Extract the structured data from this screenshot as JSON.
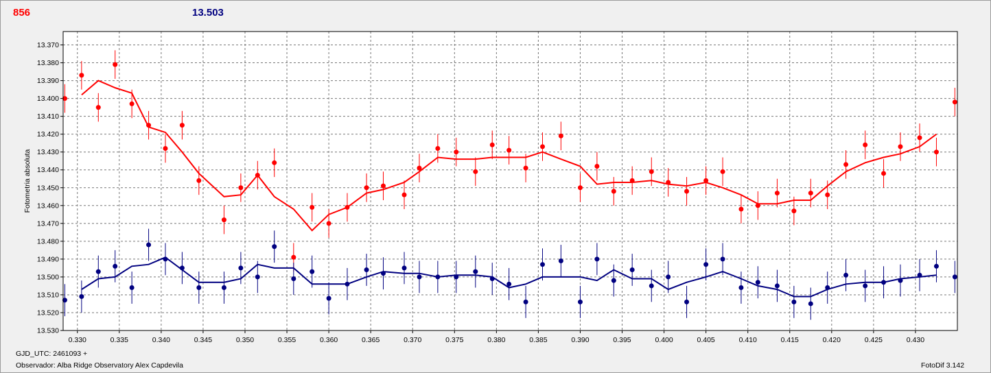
{
  "header": {
    "left_value": "856",
    "right_value": "13.503"
  },
  "footer": {
    "gjd": "GJD_UTC: 2461093 +",
    "observer": "Observador: Alba Ridge Observatory Alex Capdevila",
    "software": "FotoDif 3.142"
  },
  "colors": {
    "series_red": "#ff0000",
    "series_blue": "#000080",
    "grid": "#777777",
    "plot_bg": "#ffffff"
  },
  "chart_data": {
    "type": "scatter",
    "ylabel": "Fotometria absoluta",
    "xlabel": "",
    "xlim": [
      0.3283,
      0.435
    ],
    "ylim": [
      13.53,
      13.3625
    ],
    "y_inverted": true,
    "grid": true,
    "x_ticks": [
      0.33,
      0.335,
      0.34,
      0.345,
      0.35,
      0.355,
      0.36,
      0.365,
      0.37,
      0.375,
      0.38,
      0.385,
      0.39,
      0.395,
      0.4,
      0.405,
      0.41,
      0.415,
      0.42,
      0.425,
      0.43
    ],
    "x_tick_labels": [
      "0.330",
      "0.335",
      "0.340",
      "0.345",
      "0.350",
      "0.355",
      "0.360",
      "0.365",
      "0.370",
      "0.375",
      "0.380",
      "0.385",
      "0.390",
      "0.395",
      "0.400",
      "0.405",
      "0.410",
      "0.415",
      "0.420",
      "0.425",
      "0.430"
    ],
    "y_ticks": [
      13.37,
      13.38,
      13.39,
      13.4,
      13.41,
      13.42,
      13.43,
      13.44,
      13.45,
      13.46,
      13.47,
      13.48,
      13.49,
      13.5,
      13.51,
      13.52,
      13.53
    ],
    "y_tick_labels": [
      "13.370",
      "13.380",
      "13.390",
      "13.400",
      "13.410",
      "13.420",
      "13.430",
      "13.440",
      "13.450",
      "13.460",
      "13.470",
      "13.480",
      "13.490",
      "13.500",
      "13.510",
      "13.520",
      "13.530"
    ],
    "series": [
      {
        "color": "#ff0000",
        "error": 0.008,
        "points": [
          [
            0.3285,
            13.4
          ],
          [
            0.3305,
            13.387
          ],
          [
            0.3325,
            13.405
          ],
          [
            0.3345,
            13.381
          ],
          [
            0.3365,
            13.403
          ],
          [
            0.3385,
            13.415
          ],
          [
            0.3405,
            13.428
          ],
          [
            0.3425,
            13.415
          ],
          [
            0.3445,
            13.446
          ],
          [
            0.3475,
            13.468
          ],
          [
            0.3495,
            13.45
          ],
          [
            0.3515,
            13.443
          ],
          [
            0.3535,
            13.436
          ],
          [
            0.3558,
            13.489
          ],
          [
            0.358,
            13.461
          ],
          [
            0.36,
            13.47
          ],
          [
            0.3622,
            13.461
          ],
          [
            0.3645,
            13.45
          ],
          [
            0.3665,
            13.449
          ],
          [
            0.369,
            13.454
          ],
          [
            0.3708,
            13.439
          ],
          [
            0.373,
            13.428
          ],
          [
            0.3752,
            13.43
          ],
          [
            0.3775,
            13.441
          ],
          [
            0.3795,
            13.426
          ],
          [
            0.3815,
            13.429
          ],
          [
            0.3835,
            13.439
          ],
          [
            0.3855,
            13.427
          ],
          [
            0.3877,
            13.421
          ],
          [
            0.39,
            13.45
          ],
          [
            0.392,
            13.438
          ],
          [
            0.394,
            13.452
          ],
          [
            0.3962,
            13.446
          ],
          [
            0.3985,
            13.441
          ],
          [
            0.4005,
            13.447
          ],
          [
            0.4027,
            13.452
          ],
          [
            0.405,
            13.446
          ],
          [
            0.407,
            13.441
          ],
          [
            0.4092,
            13.462
          ],
          [
            0.4112,
            13.46
          ],
          [
            0.4135,
            13.453
          ],
          [
            0.4155,
            13.463
          ],
          [
            0.4175,
            13.453
          ],
          [
            0.4195,
            13.454
          ],
          [
            0.4217,
            13.437
          ],
          [
            0.424,
            13.426
          ],
          [
            0.4262,
            13.442
          ],
          [
            0.4282,
            13.427
          ],
          [
            0.4305,
            13.422
          ],
          [
            0.4325,
            13.43
          ],
          [
            0.4347,
            13.402
          ]
        ],
        "trend": [
          [
            0.3305,
            13.398
          ],
          [
            0.3325,
            13.39
          ],
          [
            0.3345,
            13.394
          ],
          [
            0.3365,
            13.397
          ],
          [
            0.3385,
            13.416
          ],
          [
            0.3405,
            13.419
          ],
          [
            0.3425,
            13.43
          ],
          [
            0.3445,
            13.442
          ],
          [
            0.3475,
            13.455
          ],
          [
            0.3495,
            13.454
          ],
          [
            0.3515,
            13.443
          ],
          [
            0.3535,
            13.455
          ],
          [
            0.3558,
            13.462
          ],
          [
            0.358,
            13.474
          ],
          [
            0.36,
            13.465
          ],
          [
            0.3622,
            13.461
          ],
          [
            0.3645,
            13.453
          ],
          [
            0.3665,
            13.451
          ],
          [
            0.369,
            13.447
          ],
          [
            0.3708,
            13.441
          ],
          [
            0.373,
            13.433
          ],
          [
            0.3752,
            13.434
          ],
          [
            0.3775,
            13.434
          ],
          [
            0.3795,
            13.433
          ],
          [
            0.3815,
            13.433
          ],
          [
            0.3835,
            13.433
          ],
          [
            0.3855,
            13.43
          ],
          [
            0.3877,
            13.434
          ],
          [
            0.39,
            13.438
          ],
          [
            0.392,
            13.448
          ],
          [
            0.394,
            13.447
          ],
          [
            0.3962,
            13.447
          ],
          [
            0.3985,
            13.446
          ],
          [
            0.4005,
            13.448
          ],
          [
            0.4027,
            13.449
          ],
          [
            0.405,
            13.447
          ],
          [
            0.407,
            13.45
          ],
          [
            0.4092,
            13.454
          ],
          [
            0.4112,
            13.459
          ],
          [
            0.4135,
            13.459
          ],
          [
            0.4155,
            13.457
          ],
          [
            0.4175,
            13.457
          ],
          [
            0.4195,
            13.449
          ],
          [
            0.4217,
            13.441
          ],
          [
            0.424,
            13.436
          ],
          [
            0.4262,
            13.433
          ],
          [
            0.4282,
            13.431
          ],
          [
            0.4305,
            13.427
          ],
          [
            0.4325,
            13.42
          ]
        ]
      },
      {
        "color": "#000080",
        "error": 0.009,
        "points": [
          [
            0.3285,
            13.513
          ],
          [
            0.3305,
            13.511
          ],
          [
            0.3325,
            13.497
          ],
          [
            0.3345,
            13.494
          ],
          [
            0.3365,
            13.506
          ],
          [
            0.3385,
            13.482
          ],
          [
            0.3405,
            13.49
          ],
          [
            0.3425,
            13.495
          ],
          [
            0.3445,
            13.506
          ],
          [
            0.3475,
            13.506
          ],
          [
            0.3495,
            13.495
          ],
          [
            0.3515,
            13.5
          ],
          [
            0.3535,
            13.483
          ],
          [
            0.3558,
            13.501
          ],
          [
            0.358,
            13.497
          ],
          [
            0.36,
            13.512
          ],
          [
            0.3622,
            13.504
          ],
          [
            0.3645,
            13.496
          ],
          [
            0.3665,
            13.498
          ],
          [
            0.369,
            13.495
          ],
          [
            0.3708,
            13.5
          ],
          [
            0.373,
            13.5
          ],
          [
            0.3752,
            13.5
          ],
          [
            0.3775,
            13.497
          ],
          [
            0.3795,
            13.501
          ],
          [
            0.3815,
            13.504
          ],
          [
            0.3835,
            13.514
          ],
          [
            0.3855,
            13.493
          ],
          [
            0.3877,
            13.491
          ],
          [
            0.39,
            13.514
          ],
          [
            0.392,
            13.49
          ],
          [
            0.394,
            13.502
          ],
          [
            0.3962,
            13.496
          ],
          [
            0.3985,
            13.505
          ],
          [
            0.4005,
            13.5
          ],
          [
            0.4027,
            13.514
          ],
          [
            0.405,
            13.493
          ],
          [
            0.407,
            13.49
          ],
          [
            0.4092,
            13.506
          ],
          [
            0.4112,
            13.503
          ],
          [
            0.4135,
            13.505
          ],
          [
            0.4155,
            13.514
          ],
          [
            0.4175,
            13.515
          ],
          [
            0.4195,
            13.506
          ],
          [
            0.4217,
            13.499
          ],
          [
            0.424,
            13.505
          ],
          [
            0.4262,
            13.503
          ],
          [
            0.4282,
            13.502
          ],
          [
            0.4305,
            13.499
          ],
          [
            0.4325,
            13.494
          ],
          [
            0.4347,
            13.5
          ]
        ],
        "trend": [
          [
            0.3305,
            13.507
          ],
          [
            0.3325,
            13.501
          ],
          [
            0.3345,
            13.5
          ],
          [
            0.3365,
            13.494
          ],
          [
            0.3385,
            13.493
          ],
          [
            0.3405,
            13.489
          ],
          [
            0.3425,
            13.496
          ],
          [
            0.3445,
            13.503
          ],
          [
            0.3475,
            13.503
          ],
          [
            0.3495,
            13.501
          ],
          [
            0.3515,
            13.493
          ],
          [
            0.3535,
            13.495
          ],
          [
            0.3558,
            13.495
          ],
          [
            0.358,
            13.504
          ],
          [
            0.36,
            13.504
          ],
          [
            0.3622,
            13.504
          ],
          [
            0.3645,
            13.5
          ],
          [
            0.3665,
            13.497
          ],
          [
            0.369,
            13.498
          ],
          [
            0.3708,
            13.498
          ],
          [
            0.373,
            13.5
          ],
          [
            0.3752,
            13.499
          ],
          [
            0.3775,
            13.499
          ],
          [
            0.3795,
            13.5
          ],
          [
            0.3815,
            13.506
          ],
          [
            0.3835,
            13.504
          ],
          [
            0.3855,
            13.5
          ],
          [
            0.3877,
            13.5
          ],
          [
            0.39,
            13.5
          ],
          [
            0.392,
            13.502
          ],
          [
            0.394,
            13.496
          ],
          [
            0.3962,
            13.501
          ],
          [
            0.3985,
            13.501
          ],
          [
            0.4005,
            13.507
          ],
          [
            0.4027,
            13.503
          ],
          [
            0.405,
            13.5
          ],
          [
            0.407,
            13.497
          ],
          [
            0.4092,
            13.501
          ],
          [
            0.4112,
            13.505
          ],
          [
            0.4135,
            13.507
          ],
          [
            0.4155,
            13.511
          ],
          [
            0.4175,
            13.511
          ],
          [
            0.4195,
            13.507
          ],
          [
            0.4217,
            13.504
          ],
          [
            0.424,
            13.503
          ],
          [
            0.4262,
            13.503
          ],
          [
            0.4282,
            13.501
          ],
          [
            0.4305,
            13.5
          ],
          [
            0.4325,
            13.499
          ]
        ]
      }
    ]
  }
}
